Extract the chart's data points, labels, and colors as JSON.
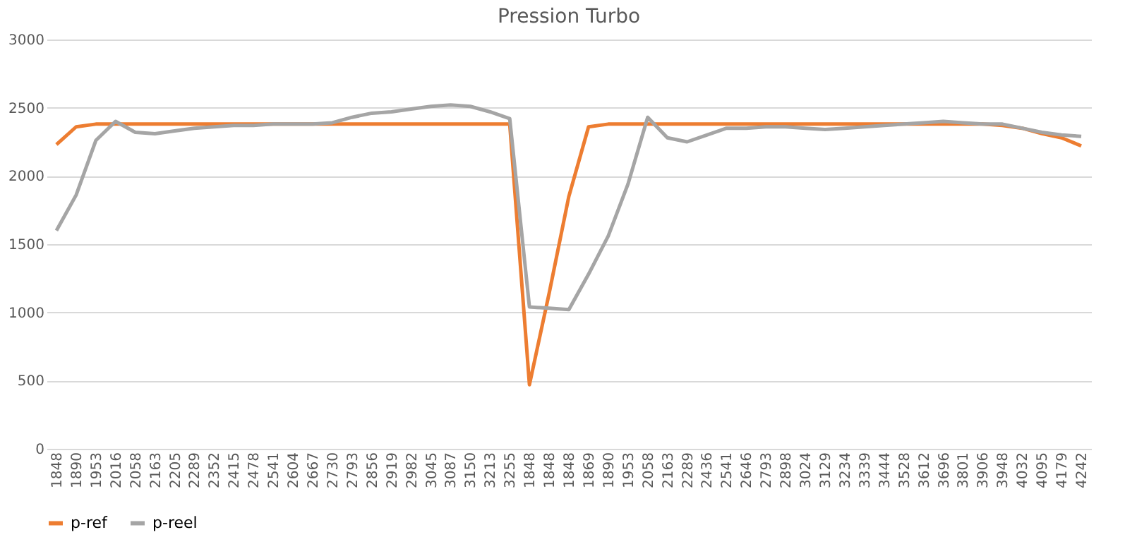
{
  "chart_data": {
    "type": "line",
    "title": "Pression Turbo",
    "categories": [
      "1848",
      "1890",
      "1953",
      "2016",
      "2058",
      "2163",
      "2205",
      "2289",
      "2352",
      "2415",
      "2478",
      "2541",
      "2604",
      "2667",
      "2730",
      "2793",
      "2856",
      "2919",
      "2982",
      "3045",
      "3087",
      "3150",
      "3213",
      "3255",
      "1848",
      "1848",
      "1848",
      "1869",
      "1890",
      "1953",
      "2058",
      "2163",
      "2289",
      "2436",
      "2541",
      "2646",
      "2793",
      "2898",
      "3024",
      "3129",
      "3234",
      "3339",
      "3444",
      "3528",
      "3612",
      "3696",
      "3801",
      "3906",
      "3948",
      "4032",
      "4095",
      "4179",
      "4242"
    ],
    "series": [
      {
        "name": "p-ref",
        "color": "#ed7d31",
        "values": [
          2230,
          2360,
          2380,
          2380,
          2380,
          2380,
          2380,
          2380,
          2380,
          2380,
          2380,
          2380,
          2380,
          2380,
          2380,
          2380,
          2380,
          2380,
          2380,
          2380,
          2380,
          2380,
          2380,
          2380,
          470,
          1140,
          1850,
          2360,
          2380,
          2380,
          2380,
          2380,
          2380,
          2380,
          2380,
          2380,
          2380,
          2380,
          2380,
          2380,
          2380,
          2380,
          2380,
          2380,
          2380,
          2380,
          2380,
          2380,
          2370,
          2350,
          2310,
          2280,
          2220
        ]
      },
      {
        "name": "p-reel",
        "color": "#a5a5a5",
        "values": [
          1600,
          1860,
          2260,
          2400,
          2320,
          2310,
          2330,
          2350,
          2360,
          2370,
          2370,
          2380,
          2380,
          2380,
          2390,
          2430,
          2460,
          2470,
          2490,
          2510,
          2520,
          2510,
          2470,
          2420,
          1040,
          1030,
          1020,
          1280,
          1560,
          1940,
          2430,
          2280,
          2250,
          2300,
          2350,
          2350,
          2360,
          2360,
          2350,
          2340,
          2350,
          2360,
          2370,
          2380,
          2390,
          2400,
          2390,
          2380,
          2380,
          2350,
          2320,
          2300,
          2290
        ]
      }
    ],
    "ylim": [
      0,
      3000
    ],
    "yticks": [
      0,
      500,
      1000,
      1500,
      2000,
      2500,
      3000
    ],
    "grid": "y",
    "legend": "bottom",
    "marker": "none",
    "line_style": "solid"
  }
}
